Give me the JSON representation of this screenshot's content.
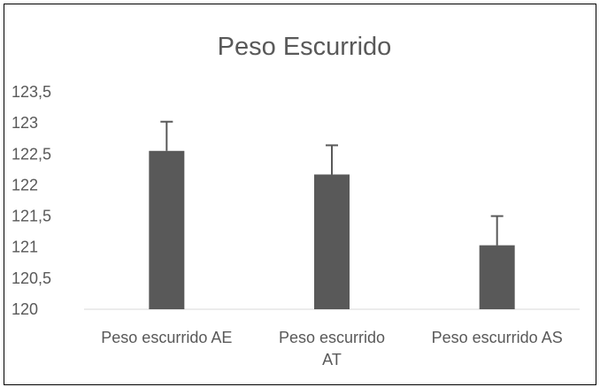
{
  "colors": {
    "bar": "#595959",
    "error_bar": "#595959",
    "axis": "#d9d9d9",
    "text": "#595959"
  },
  "chart_data": {
    "type": "bar",
    "title": "Peso Escurrido",
    "xlabel": "",
    "ylabel": "",
    "categories": [
      "Peso escurrido AE",
      "Peso escurrido AT",
      "Peso escurrido AS"
    ],
    "category_lines": [
      [
        "Peso escurrido AE"
      ],
      [
        "Peso escurrido",
        "AT"
      ],
      [
        "Peso escurrido AS"
      ]
    ],
    "values": [
      122.55,
      122.17,
      121.03
    ],
    "error_plus": [
      0.47,
      0.47,
      0.47
    ],
    "ylim": [
      120,
      123.5
    ],
    "yticks": [
      120,
      120.5,
      121,
      121.5,
      122,
      122.5,
      123,
      123.5
    ],
    "ytick_labels": [
      "120",
      "120,5",
      "121",
      "121,5",
      "122",
      "122,5",
      "123",
      "123,5"
    ],
    "grid": false,
    "legend": "none"
  }
}
